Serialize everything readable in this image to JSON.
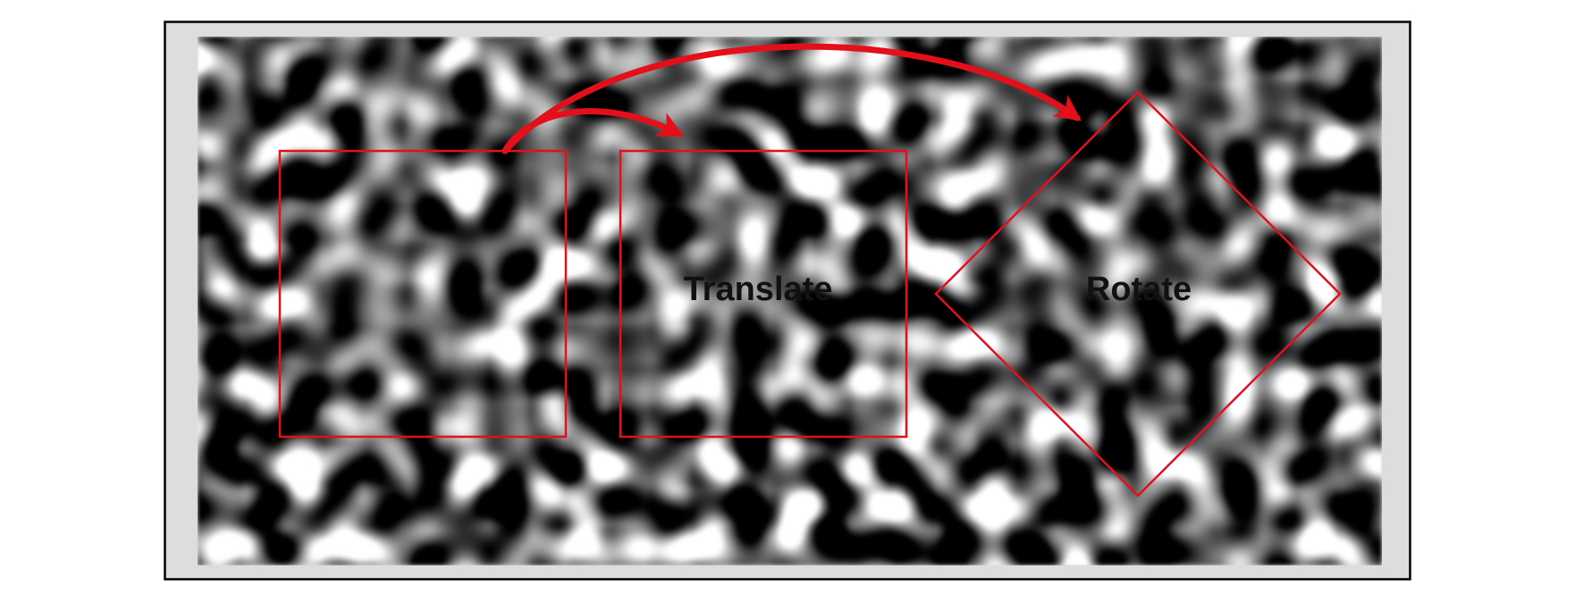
{
  "labels": {
    "translate": "Translate",
    "rotate": "Rotate"
  },
  "colors": {
    "frame_background": "#dcdedd",
    "frame_border": "#000000",
    "annotation_red": "#e3101b",
    "label_text": "#111111"
  },
  "texture": {
    "style": "blurred grayscale noise",
    "seed": 17
  }
}
